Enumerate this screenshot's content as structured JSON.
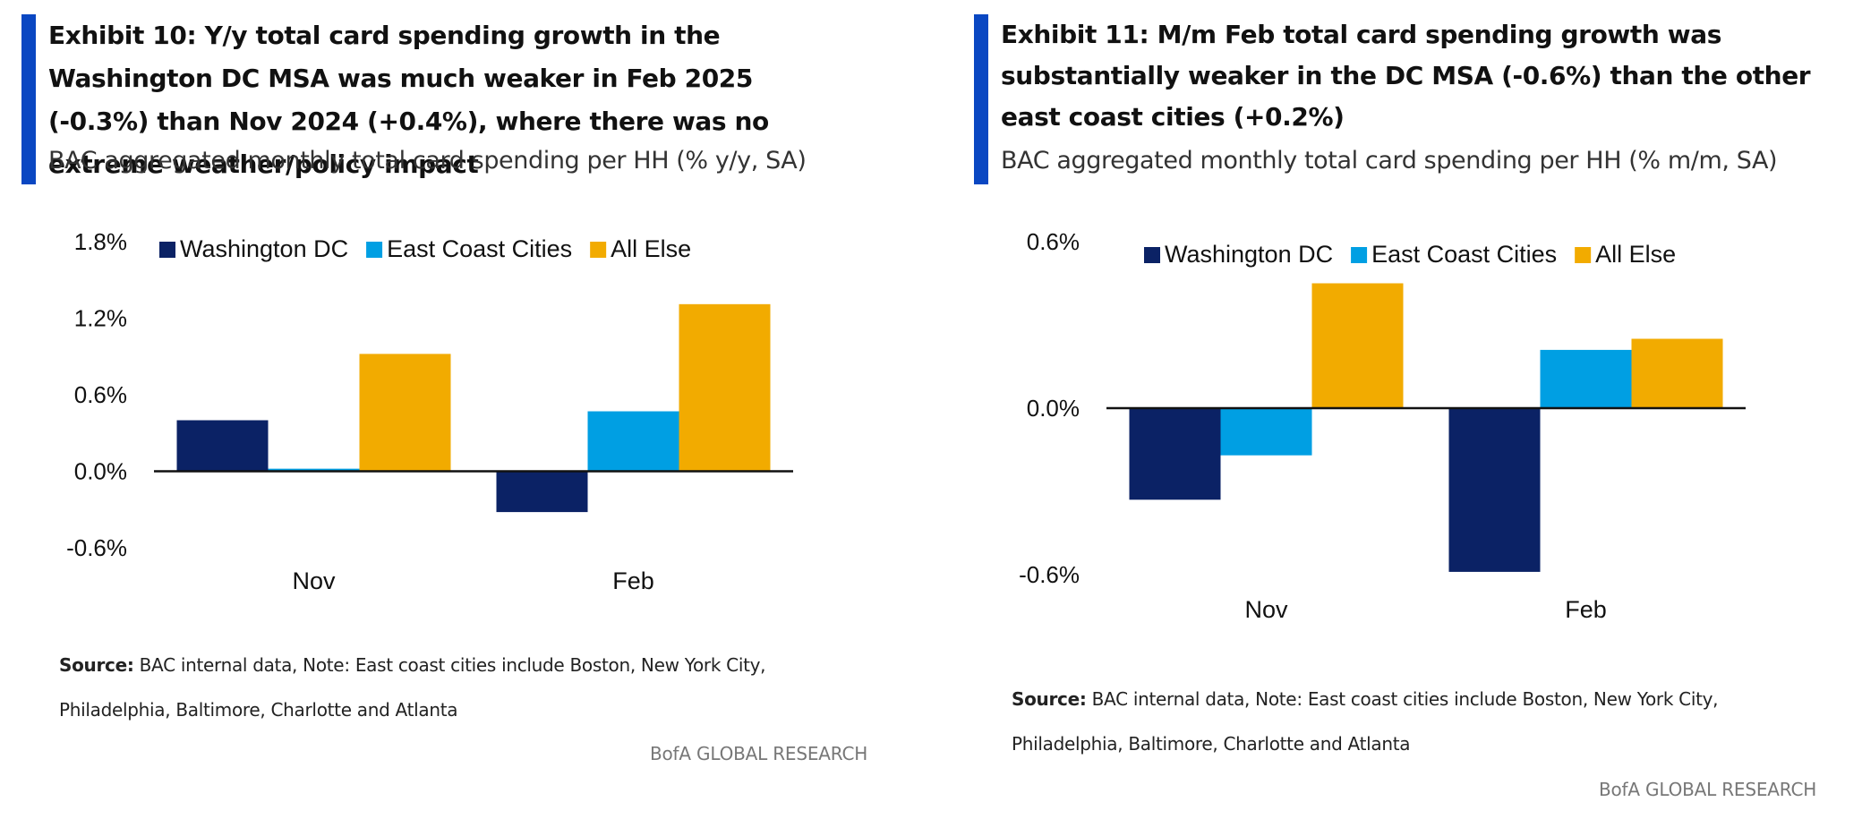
{
  "exhibits": [
    {
      "title": "Exhibit 10: Y/y total card spending growth in the Washington DC MSA was much weaker in Feb 2025 (-0.3%) than Nov 2024 (+0.4%), where there was no extreme weather/policy impact",
      "subtitle": "BAC aggregated monthly total card spending per HH (% y/y, SA)",
      "source_label": "Source:",
      "source_text": "BAC internal data, Note: East coast cities include Boston, New York City, Philadelphia, Baltimore, Charlotte and Atlanta",
      "brand": "BofA GLOBAL RESEARCH"
    },
    {
      "title": "Exhibit 11: M/m Feb total card spending growth was substantially weaker in the DC MSA (-0.6%) than the other east coast cities (+0.2%)",
      "subtitle": "BAC aggregated monthly total card spending per HH (% m/m, SA)",
      "source_label": "Source:",
      "source_text": "BAC internal data, Note: East coast cities include Boston, New York City, Philadelphia, Baltimore, Charlotte and Atlanta",
      "brand": "BofA GLOBAL RESEARCH"
    }
  ],
  "chart_data": [
    {
      "type": "bar",
      "categories": [
        "Nov",
        "Feb"
      ],
      "series": [
        {
          "name": "Washington DC",
          "color": "#0b2265",
          "values": [
            0.4,
            -0.32
          ]
        },
        {
          "name": "East Coast Cities",
          "color": "#009fe3",
          "values": [
            0.02,
            0.47
          ]
        },
        {
          "name": "All Else",
          "color": "#f2ab00",
          "values": [
            0.92,
            1.31
          ]
        }
      ],
      "ylim": [
        -0.6,
        1.8
      ],
      "yticks": [
        1.8,
        1.2,
        0.6,
        0.0,
        -0.6
      ],
      "ytick_labels": [
        "1.8%",
        "1.2%",
        "0.6%",
        "0.0%",
        "-0.6%"
      ],
      "grid": false,
      "legend_position": "top"
    },
    {
      "type": "bar",
      "categories": [
        "Nov",
        "Feb"
      ],
      "series": [
        {
          "name": "Washington DC",
          "color": "#0b2265",
          "values": [
            -0.33,
            -0.59
          ]
        },
        {
          "name": "East Coast Cities",
          "color": "#009fe3",
          "values": [
            -0.17,
            0.21
          ]
        },
        {
          "name": "All Else",
          "color": "#f2ab00",
          "values": [
            0.45,
            0.25
          ]
        }
      ],
      "ylim": [
        -0.6,
        0.6
      ],
      "yticks": [
        0.6,
        0.0,
        -0.6
      ],
      "ytick_labels": [
        "0.6%",
        "0.0%",
        "-0.6%"
      ],
      "grid": false,
      "legend_position": "top"
    }
  ]
}
